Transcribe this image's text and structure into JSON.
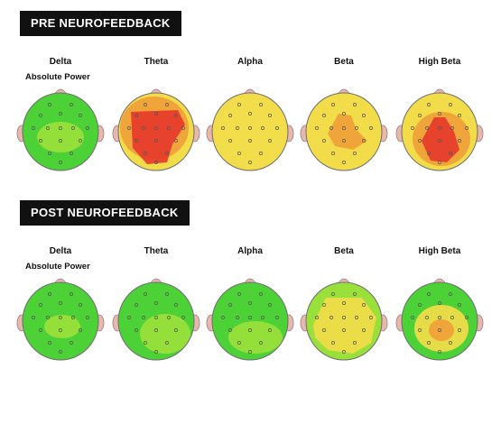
{
  "colors": {
    "low": "#4CD137",
    "mid_low": "#9AE03A",
    "mid": "#F2DC4A",
    "mid_high": "#F0A03A",
    "high": "#E63A2A",
    "ear": "#E8B7AE",
    "nose": "#E6B3B3"
  },
  "sections": [
    {
      "title": "PRE NEUROFEEDBACK",
      "sublabel": "Absolute Power",
      "maps": [
        {
          "band": "Delta",
          "base": "low",
          "blobs": [
            {
              "level": "mid_low"
            }
          ]
        },
        {
          "band": "Theta",
          "base": "mid",
          "blobs": [
            {
              "level": "mid_high"
            },
            {
              "level": "high"
            }
          ]
        },
        {
          "band": "Alpha",
          "base": "mid",
          "blobs": [
            {
              "level": "mid"
            }
          ]
        },
        {
          "band": "Beta",
          "base": "mid",
          "blobs": [
            {
              "level": "mid_high"
            }
          ]
        },
        {
          "band": "High Beta",
          "base": "mid",
          "blobs": [
            {
              "level": "mid_high"
            },
            {
              "level": "high"
            }
          ]
        }
      ]
    },
    {
      "title": "POST NEUROFEEDBACK",
      "sublabel": "Absolute Power",
      "maps": [
        {
          "band": "Delta",
          "base": "low",
          "blobs": [
            {
              "level": "mid_low"
            }
          ]
        },
        {
          "band": "Theta",
          "base": "low",
          "blobs": [
            {
              "level": "mid_low"
            }
          ]
        },
        {
          "band": "Alpha",
          "base": "low",
          "blobs": [
            {
              "level": "mid_low"
            }
          ]
        },
        {
          "band": "Beta",
          "base": "mid_low",
          "blobs": [
            {
              "level": "mid"
            }
          ]
        },
        {
          "band": "High Beta",
          "base": "low",
          "blobs": [
            {
              "level": "mid"
            },
            {
              "level": "mid_high"
            }
          ]
        }
      ]
    }
  ]
}
